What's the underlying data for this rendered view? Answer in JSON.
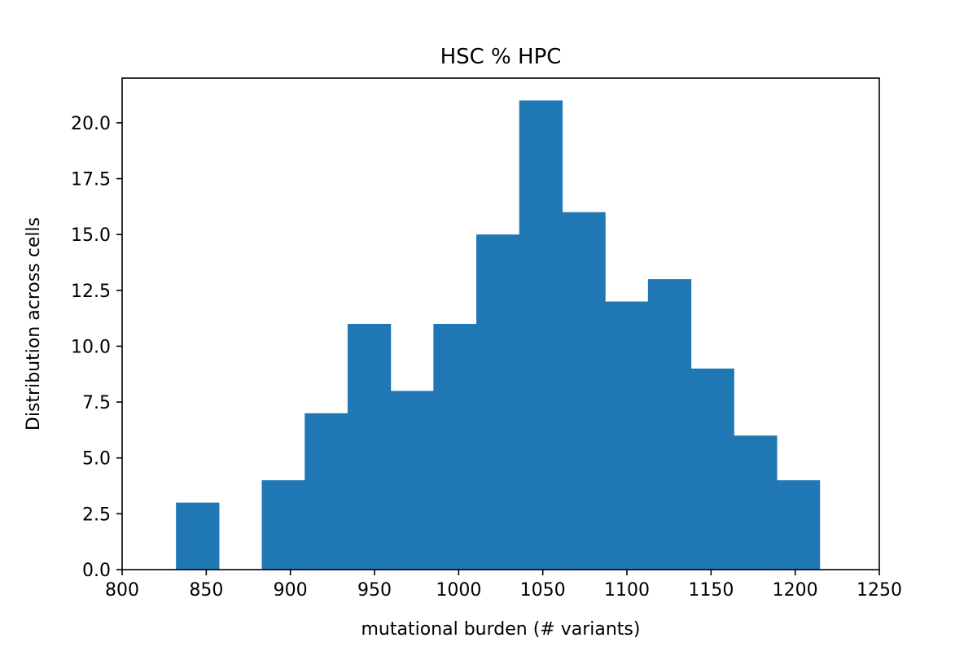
{
  "chart_data": {
    "type": "bar",
    "title": "HSC % HPC",
    "xlabel": "mutational burden (# variants)",
    "ylabel": "Distribution across cells",
    "xlim": [
      800,
      1250
    ],
    "ylim": [
      0,
      22
    ],
    "bar_color": "#1f77b4",
    "grid": false,
    "x_ticks": [
      "800",
      "850",
      "900",
      "950",
      "1000",
      "1050",
      "1100",
      "1150",
      "1200",
      "1250"
    ],
    "y_ticks": [
      "0.0",
      "2.5",
      "5.0",
      "7.5",
      "10.0",
      "12.5",
      "15.0",
      "17.5",
      "20.0"
    ],
    "bins": [
      {
        "start": 832,
        "end": 857.5,
        "count": 3
      },
      {
        "start": 857.5,
        "end": 883,
        "count": 0
      },
      {
        "start": 883,
        "end": 908.5,
        "count": 4
      },
      {
        "start": 908.5,
        "end": 934,
        "count": 7
      },
      {
        "start": 934,
        "end": 959.5,
        "count": 11
      },
      {
        "start": 959.5,
        "end": 985,
        "count": 8
      },
      {
        "start": 985,
        "end": 1010.5,
        "count": 11
      },
      {
        "start": 1010.5,
        "end": 1036,
        "count": 15
      },
      {
        "start": 1036,
        "end": 1061.5,
        "count": 21
      },
      {
        "start": 1061.5,
        "end": 1087,
        "count": 16
      },
      {
        "start": 1087,
        "end": 1112.5,
        "count": 12
      },
      {
        "start": 1112.5,
        "end": 1138,
        "count": 13
      },
      {
        "start": 1138,
        "end": 1163.5,
        "count": 9
      },
      {
        "start": 1163.5,
        "end": 1189,
        "count": 6
      },
      {
        "start": 1189,
        "end": 1214.5,
        "count": 4
      }
    ]
  }
}
